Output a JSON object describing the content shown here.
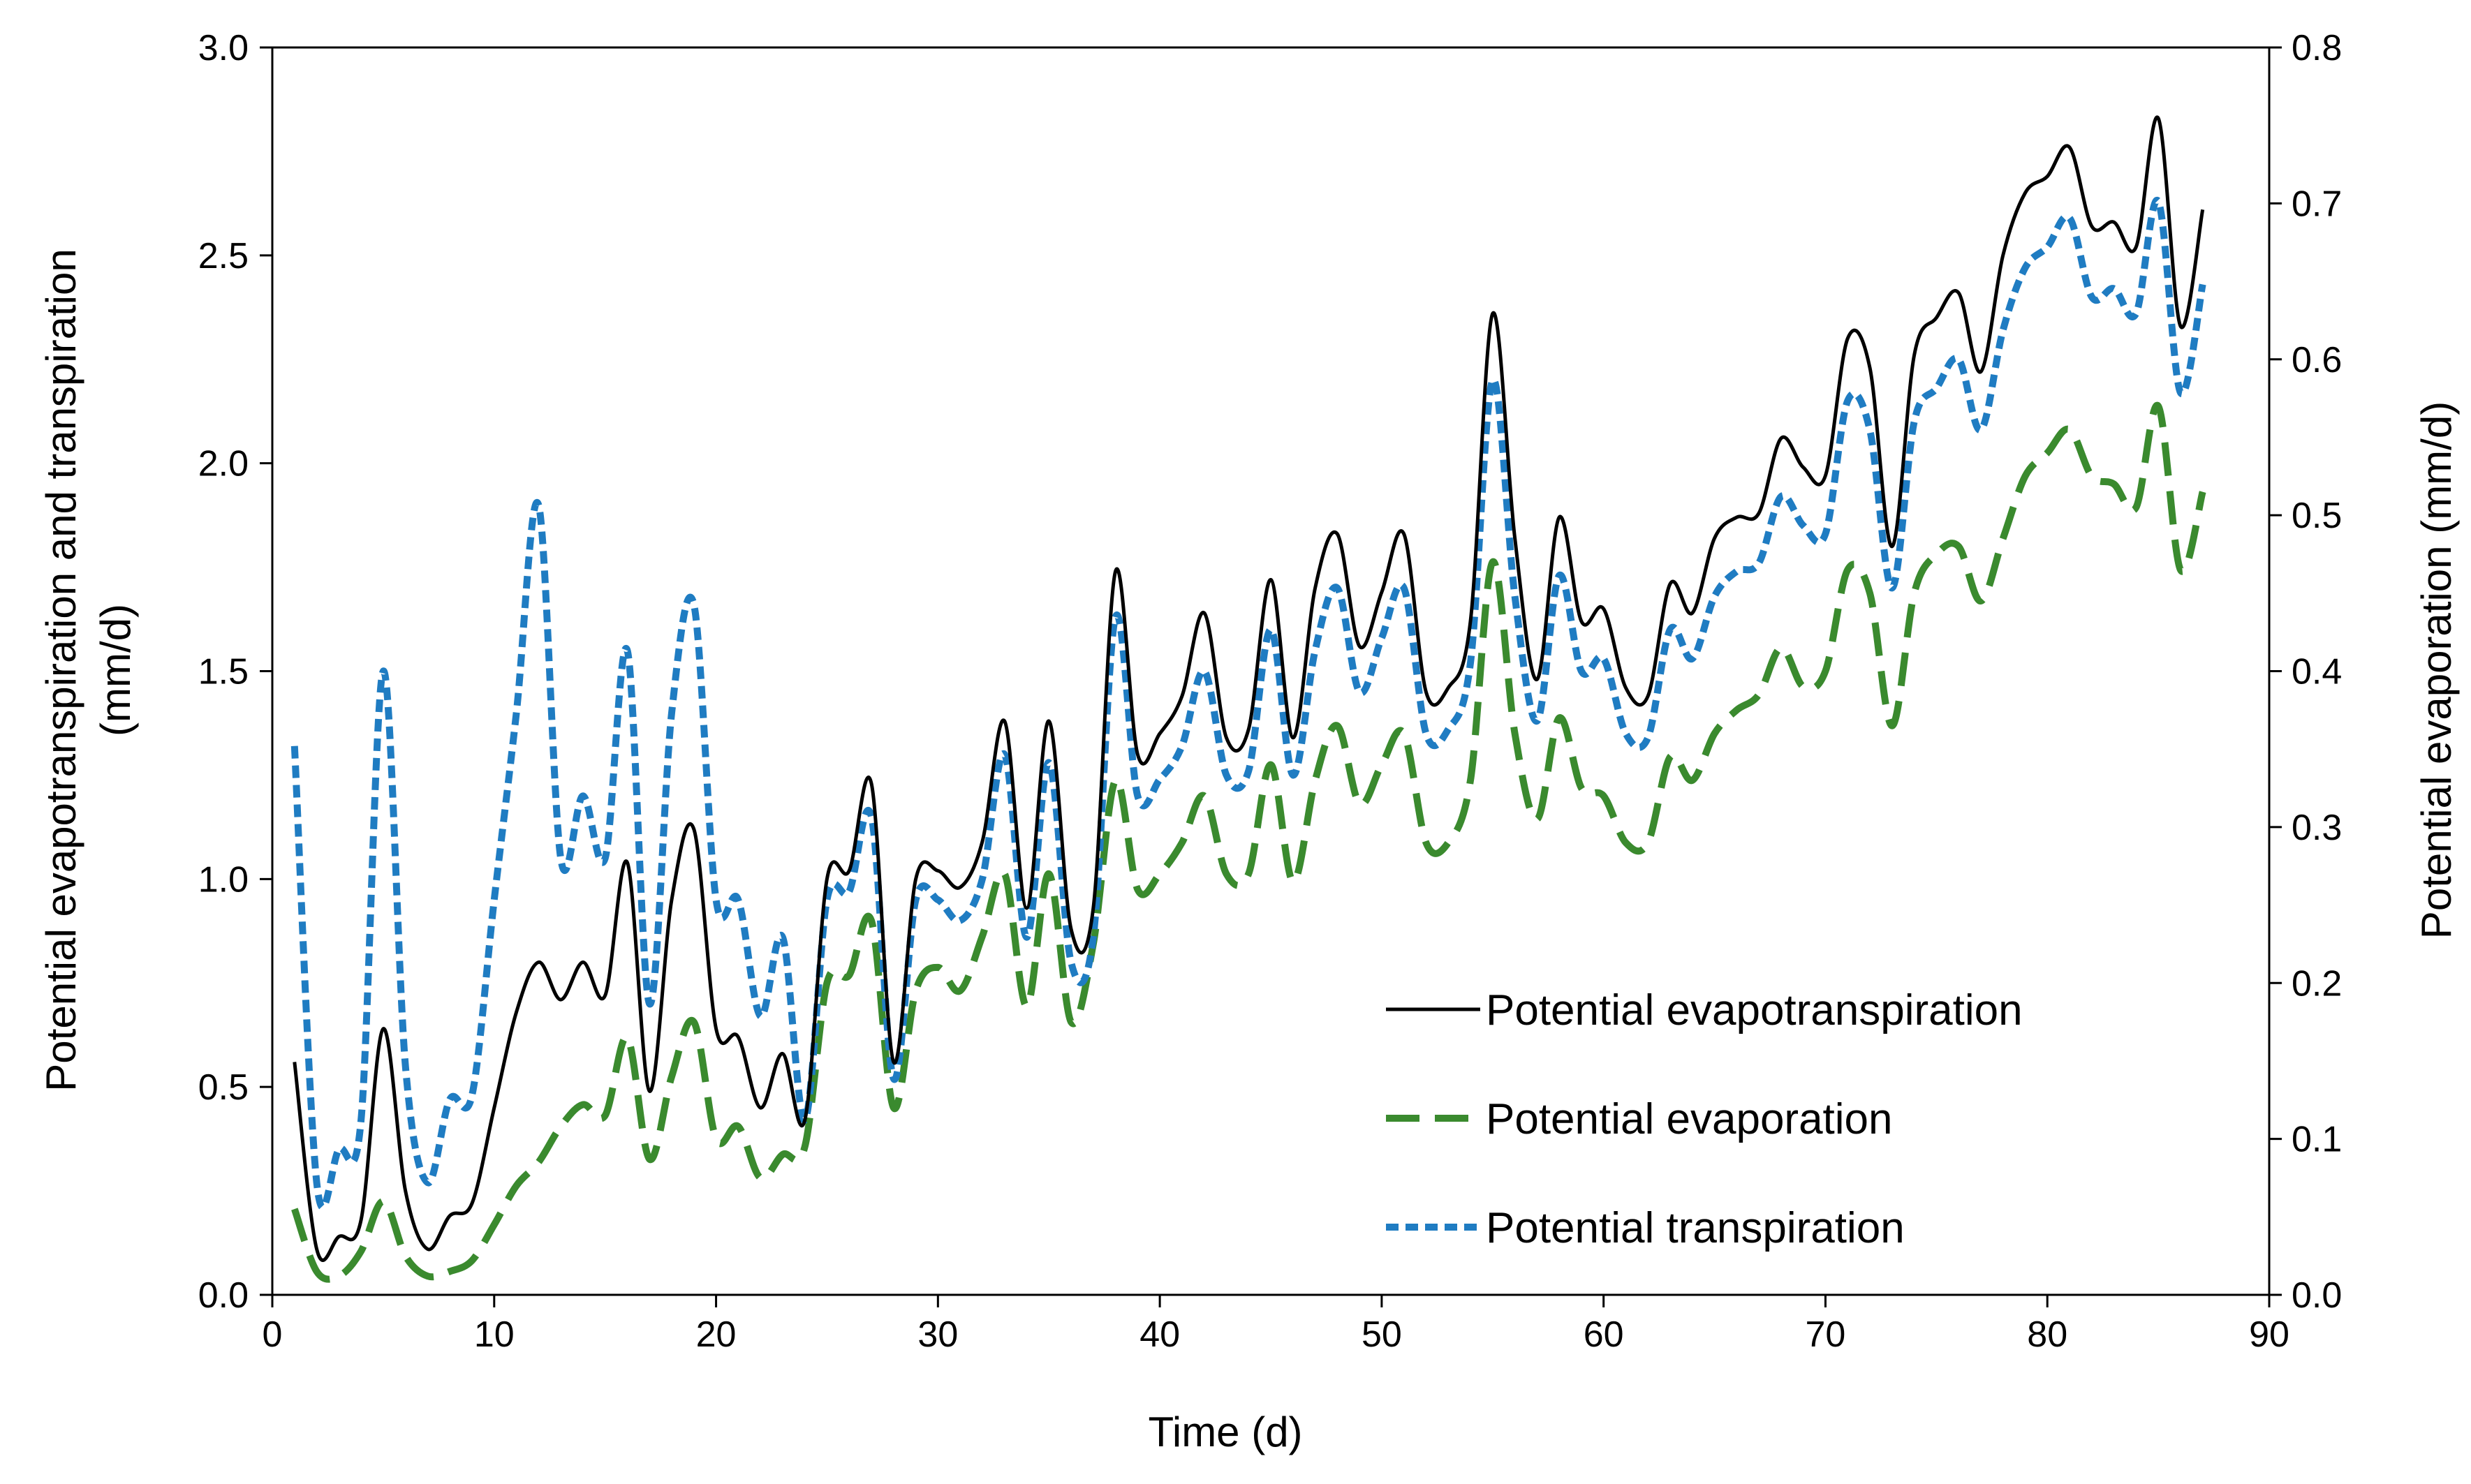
{
  "chart_data": {
    "type": "line",
    "title": "",
    "xlabel": "Time (d)",
    "ylabel_left_line1": "Potential evapotranspiration  and transpiration",
    "ylabel_left_line2": "(mm/d)",
    "ylabel_right": "Potential evaporation  (mm/d)",
    "xlim": [
      0,
      90
    ],
    "ylim_left": [
      0,
      3.0
    ],
    "ylim_right": [
      0,
      0.8
    ],
    "x_ticks": [
      "0",
      "10",
      "20",
      "30",
      "40",
      "50",
      "60",
      "70",
      "80",
      "90"
    ],
    "y_left_ticks": [
      "0.0",
      "0.5",
      "1.0",
      "1.5",
      "2.0",
      "2.5",
      "3.0"
    ],
    "y_right_ticks": [
      "0.0",
      "0.1",
      "0.2",
      "0.3",
      "0.4",
      "0.5",
      "0.6",
      "0.7",
      "0.8"
    ],
    "grid": false,
    "legend_position": "bottom-right",
    "x": [
      1,
      2,
      3,
      4,
      5,
      6,
      7,
      8,
      9,
      10,
      11,
      12,
      13,
      14,
      15,
      16,
      17,
      18,
      19,
      20,
      21,
      22,
      23,
      24,
      25,
      26,
      27,
      28,
      29,
      30,
      31,
      32,
      33,
      34,
      35,
      36,
      37,
      38,
      39,
      40,
      41,
      42,
      43,
      44,
      45,
      46,
      47,
      48,
      49,
      50,
      51,
      52,
      53,
      54,
      55,
      56,
      57,
      58,
      59,
      60,
      61,
      62,
      63,
      64,
      65,
      66,
      67,
      68,
      69,
      70,
      71,
      72,
      73,
      74,
      75,
      76,
      77,
      78,
      79,
      80,
      81,
      82,
      83,
      84,
      85,
      86,
      87
    ],
    "series": [
      {
        "name": "Potential  evapotranspiration",
        "axis": "left",
        "color": "#000000",
        "style": "solid",
        "values": [
          0.56,
          0.11,
          0.14,
          0.18,
          0.64,
          0.25,
          0.11,
          0.19,
          0.22,
          0.45,
          0.68,
          0.8,
          0.71,
          0.8,
          0.72,
          1.04,
          0.49,
          0.95,
          1.12,
          0.64,
          0.62,
          0.45,
          0.58,
          0.42,
          1.0,
          1.02,
          1.23,
          0.56,
          1.0,
          1.02,
          0.98,
          1.09,
          1.38,
          0.93,
          1.38,
          0.88,
          0.93,
          1.74,
          1.3,
          1.35,
          1.44,
          1.64,
          1.34,
          1.36,
          1.72,
          1.34,
          1.7,
          1.83,
          1.56,
          1.69,
          1.83,
          1.45,
          1.46,
          1.62,
          2.36,
          1.82,
          1.48,
          1.87,
          1.62,
          1.65,
          1.46,
          1.44,
          1.71,
          1.64,
          1.82,
          1.87,
          1.88,
          2.06,
          1.99,
          1.97,
          2.3,
          2.23,
          1.8,
          2.26,
          2.35,
          2.41,
          2.22,
          2.5,
          2.65,
          2.69,
          2.76,
          2.57,
          2.58,
          2.52,
          2.83,
          2.33,
          2.61
        ]
      },
      {
        "name": "Potential  evaporation",
        "axis": "right",
        "color": "#3a8a2e",
        "style": "long-dash",
        "values": [
          0.055,
          0.015,
          0.012,
          0.028,
          0.06,
          0.025,
          0.012,
          0.015,
          0.022,
          0.045,
          0.07,
          0.085,
          0.108,
          0.122,
          0.115,
          0.165,
          0.087,
          0.14,
          0.175,
          0.1,
          0.108,
          0.075,
          0.09,
          0.095,
          0.2,
          0.205,
          0.24,
          0.12,
          0.195,
          0.21,
          0.195,
          0.23,
          0.27,
          0.185,
          0.27,
          0.175,
          0.225,
          0.33,
          0.26,
          0.27,
          0.29,
          0.32,
          0.27,
          0.27,
          0.34,
          0.265,
          0.33,
          0.365,
          0.315,
          0.34,
          0.36,
          0.29,
          0.29,
          0.33,
          0.47,
          0.36,
          0.305,
          0.37,
          0.325,
          0.32,
          0.29,
          0.29,
          0.345,
          0.33,
          0.36,
          0.375,
          0.385,
          0.415,
          0.39,
          0.4,
          0.465,
          0.45,
          0.365,
          0.45,
          0.475,
          0.48,
          0.445,
          0.485,
          0.525,
          0.54,
          0.555,
          0.525,
          0.52,
          0.505,
          0.57,
          0.465,
          0.515
        ]
      },
      {
        "name": "Potential  transpiration",
        "axis": "left",
        "color": "#1f7cc2",
        "style": "short-dash",
        "values": [
          1.32,
          0.27,
          0.35,
          0.42,
          1.5,
          0.55,
          0.27,
          0.47,
          0.48,
          0.95,
          1.4,
          1.9,
          1.05,
          1.2,
          1.05,
          1.55,
          0.7,
          1.4,
          1.66,
          0.95,
          0.95,
          0.67,
          0.86,
          0.42,
          0.95,
          0.97,
          1.15,
          0.52,
          0.95,
          0.95,
          0.9,
          1.0,
          1.3,
          0.86,
          1.28,
          0.8,
          0.86,
          1.63,
          1.2,
          1.24,
          1.32,
          1.5,
          1.25,
          1.26,
          1.6,
          1.25,
          1.55,
          1.7,
          1.45,
          1.58,
          1.7,
          1.35,
          1.36,
          1.52,
          2.2,
          1.68,
          1.38,
          1.73,
          1.5,
          1.53,
          1.35,
          1.34,
          1.6,
          1.53,
          1.68,
          1.74,
          1.76,
          1.92,
          1.85,
          1.83,
          2.15,
          2.08,
          1.7,
          2.1,
          2.18,
          2.25,
          2.08,
          2.32,
          2.47,
          2.52,
          2.59,
          2.4,
          2.42,
          2.36,
          2.63,
          2.17,
          2.43
        ]
      }
    ]
  }
}
